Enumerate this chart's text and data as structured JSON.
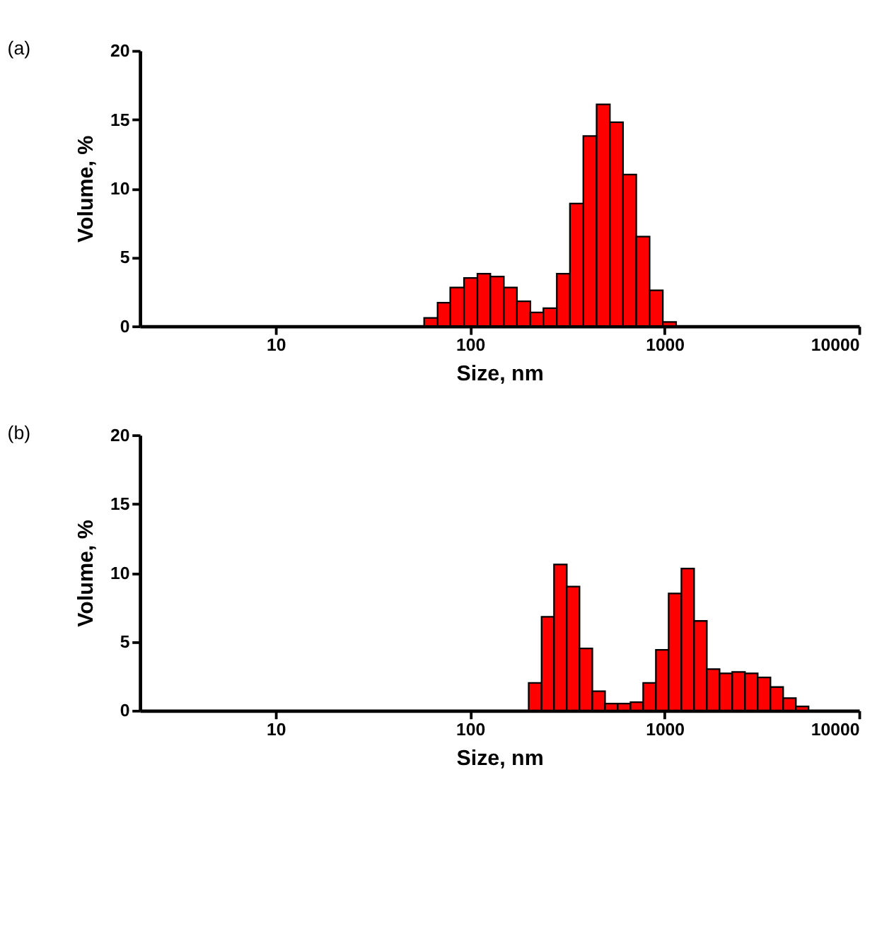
{
  "chart_data": [
    {
      "type": "histogram",
      "title": "(a)",
      "xlabel": "Size, nm",
      "ylabel": "Volume, %",
      "color": "#ff0000",
      "log": "x",
      "grid": false,
      "bins": [
        58,
        68,
        79,
        93,
        109,
        127,
        149,
        174,
        204,
        238,
        279,
        326,
        382,
        447,
        523,
        611,
        715,
        837,
        979,
        1146
      ],
      "values": [
        0.6,
        1.7,
        2.8,
        3.5,
        3.8,
        3.6,
        2.8,
        1.8,
        1.0,
        1.3,
        3.8,
        8.9,
        13.8,
        16.1,
        14.8,
        11.0,
        6.5,
        2.6,
        0.3
      ],
      "xlim": [
        2,
        10000
      ],
      "xticks": [
        10,
        100,
        1000,
        10000
      ],
      "ylim": [
        0,
        20
      ],
      "yticks": [
        0,
        5,
        10,
        15,
        20
      ]
    },
    {
      "type": "histogram",
      "title": "(b)",
      "xlabel": "Size, nm",
      "ylabel": "Volume, %",
      "color": "#ff0000",
      "log": "x",
      "grid": false,
      "bins": [
        200,
        233,
        270,
        314,
        365,
        425,
        494,
        574,
        668,
        776,
        902,
        1049,
        1220,
        1418,
        1649,
        1917,
        2228,
        2591,
        3012,
        3502,
        4071,
        4733,
        5500
      ],
      "values": [
        2.0,
        6.8,
        10.6,
        9.0,
        4.5,
        1.4,
        0.5,
        0.5,
        0.6,
        2.0,
        4.4,
        8.5,
        10.3,
        6.5,
        3.0,
        2.7,
        2.8,
        2.7,
        2.4,
        1.7,
        0.9,
        0.3
      ],
      "xlim": [
        2,
        10000
      ],
      "xticks": [
        10,
        100,
        1000,
        10000
      ],
      "ylim": [
        0,
        20
      ],
      "yticks": [
        0,
        5,
        10,
        15,
        20
      ]
    }
  ]
}
